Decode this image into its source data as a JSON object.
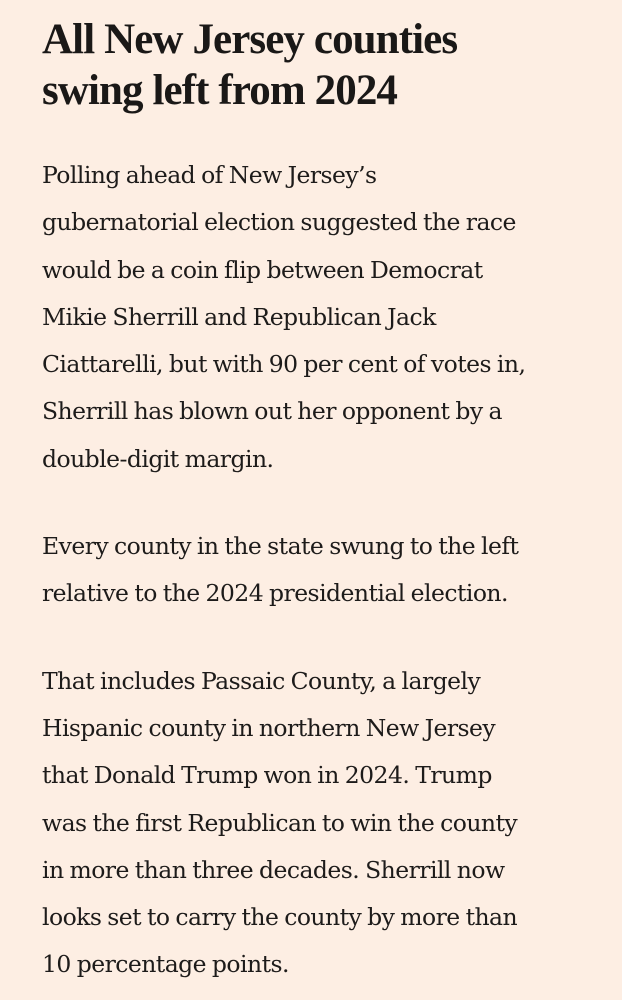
{
  "article": {
    "headline": {
      "lines": [
        "All New Jersey counties",
        "swing left from 2024"
      ]
    },
    "paragraphs": [
      {
        "lines": [
          "Polling ahead of New Jersey’s",
          "gubernatorial election suggested the race",
          "would be a coin flip between Democrat",
          "Mikie Sherrill and Republican Jack",
          "Ciattarelli, but with 90 per cent of votes in,",
          "Sherrill has blown out her opponent by a",
          "double-digit margin."
        ]
      },
      {
        "lines": [
          "Every county in the state swung to the left",
          "relative to the 2024 presidential election."
        ]
      },
      {
        "lines": [
          "That includes Passaic County, a largely",
          "Hispanic county in northern New Jersey",
          "that Donald Trump won in 2024. Trump",
          "was the first Republican to win the county",
          "in more than three decades. Sherrill now",
          "looks set to carry the county by more than",
          "10 percentage points."
        ]
      }
    ]
  },
  "colors": {
    "background": "#FDEEE3",
    "text": "#1a1817"
  }
}
